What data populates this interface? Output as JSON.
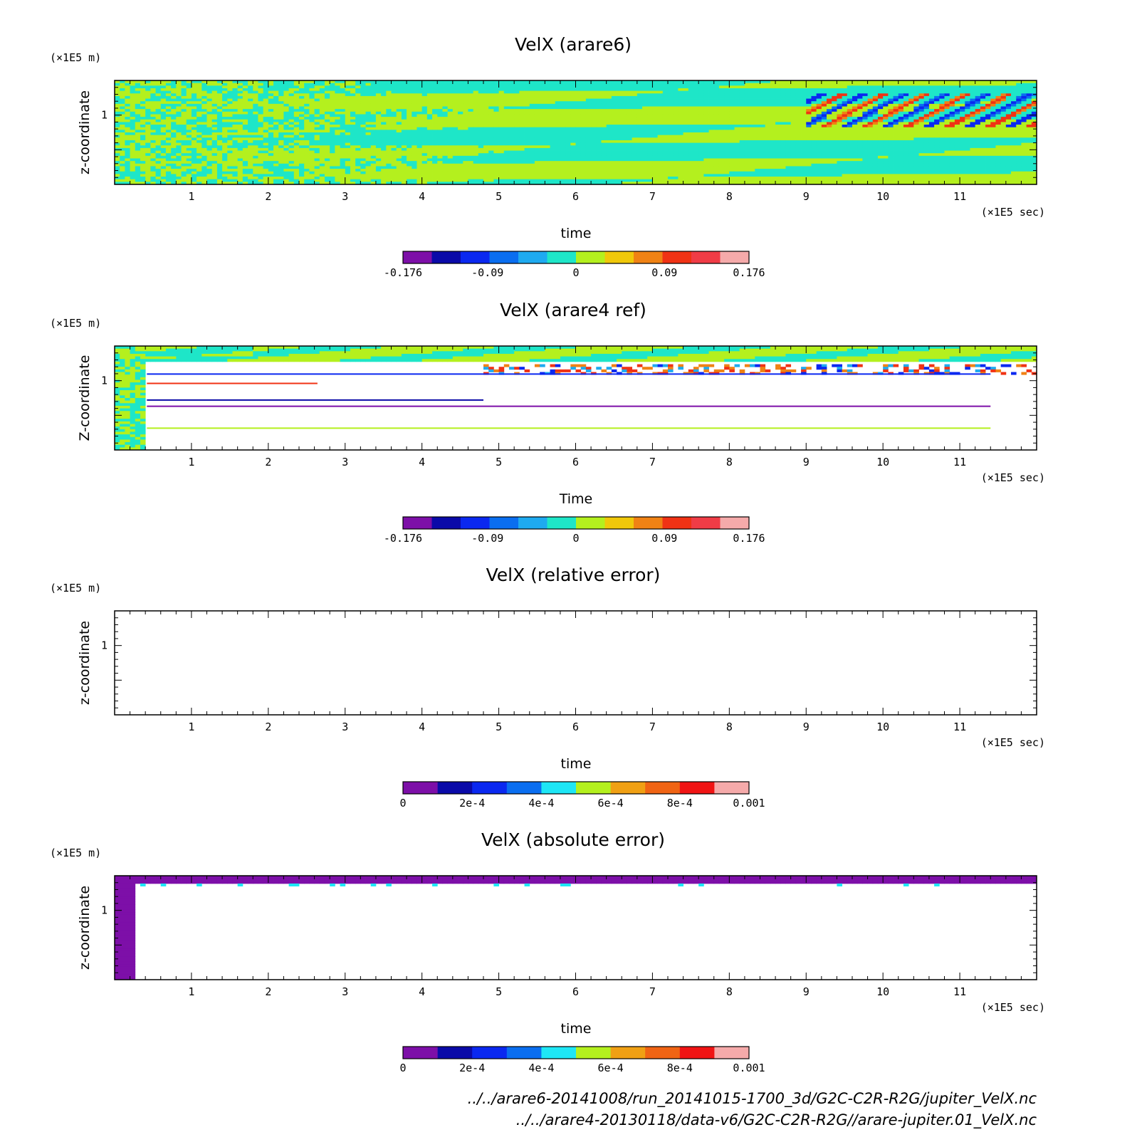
{
  "chart_data": [
    {
      "type": "heatmap",
      "title": "VelX (arare6)",
      "xlabel": "time",
      "ylabel": "z-coordinate",
      "x_unit": "(×1E5 sec)",
      "y_unit": "(×1E5 m)",
      "x_ticks": [
        "1",
        "2",
        "3",
        "4",
        "5",
        "6",
        "7",
        "8",
        "9",
        "10",
        "11"
      ],
      "y_ticks": [
        "1"
      ],
      "xlim": [
        0,
        12
      ],
      "ylim": [
        0,
        1.5
      ],
      "colorbar": {
        "colors": [
          "#7d0fa8",
          "#0a0aa8",
          "#0a28f0",
          "#0a6ef0",
          "#1eaaf0",
          "#1ee6c8",
          "#b4f01e",
          "#f0c80a",
          "#f08214",
          "#f03214",
          "#f03c46",
          "#f5aaaa"
        ],
        "tick_labels": [
          "-0.176",
          "-0.09",
          "0",
          "0.09",
          "0.176"
        ],
        "tick_values": [
          -0.176,
          -0.09,
          0,
          0.09,
          0.176
        ],
        "range": [
          -0.176,
          0.176
        ]
      },
      "pattern": "arare6"
    },
    {
      "type": "heatmap",
      "title": "VelX (arare4 ref)",
      "xlabel": "Time",
      "ylabel": "Z-coordinate",
      "x_unit": "(×1E5 sec)",
      "y_unit": "(×1E5 m)",
      "x_ticks": [
        "1",
        "2",
        "3",
        "4",
        "5",
        "6",
        "7",
        "8",
        "9",
        "10",
        "11"
      ],
      "y_ticks": [
        "1"
      ],
      "xlim": [
        0,
        12
      ],
      "ylim": [
        0,
        1.5
      ],
      "colorbar": {
        "colors": [
          "#7d0fa8",
          "#0a0aa8",
          "#0a28f0",
          "#0a6ef0",
          "#1eaaf0",
          "#1ee6c8",
          "#b4f01e",
          "#f0c80a",
          "#f08214",
          "#f03214",
          "#f03c46",
          "#f5aaaa"
        ],
        "tick_labels": [
          "-0.176",
          "-0.09",
          "0",
          "0.09",
          "0.176"
        ],
        "tick_values": [
          -0.176,
          -0.09,
          0,
          0.09,
          0.176
        ],
        "range": [
          -0.176,
          0.176
        ]
      },
      "pattern": "arare4"
    },
    {
      "type": "heatmap",
      "title": "VelX (relative error)",
      "xlabel": "time",
      "ylabel": "z-coordinate",
      "x_unit": "(×1E5 sec)",
      "y_unit": "(×1E5 m)",
      "x_ticks": [
        "1",
        "2",
        "3",
        "4",
        "5",
        "6",
        "7",
        "8",
        "9",
        "10",
        "11"
      ],
      "y_ticks": [
        "1"
      ],
      "xlim": [
        0,
        12
      ],
      "ylim": [
        0,
        1.5
      ],
      "colorbar": {
        "colors": [
          "#7d0fa8",
          "#0a0aa8",
          "#0a28f0",
          "#0a6ef0",
          "#1ee6f5",
          "#b4f01e",
          "#f0a014",
          "#f06414",
          "#f01414",
          "#f5aaaa"
        ],
        "tick_labels": [
          "0",
          "2e-4",
          "4e-4",
          "6e-4",
          "8e-4",
          "0.001"
        ],
        "tick_values": [
          0,
          0.0002,
          0.0004,
          0.0006,
          0.0008,
          0.001
        ],
        "range": [
          0,
          0.001
        ]
      },
      "pattern": "empty"
    },
    {
      "type": "heatmap",
      "title": "VelX (absolute error)",
      "xlabel": "time",
      "ylabel": "z-coordinate",
      "x_unit": "(×1E5 sec)",
      "y_unit": "(×1E5 m)",
      "x_ticks": [
        "1",
        "2",
        "3",
        "4",
        "5",
        "6",
        "7",
        "8",
        "9",
        "10",
        "11"
      ],
      "y_ticks": [
        "1"
      ],
      "xlim": [
        0,
        12
      ],
      "ylim": [
        0,
        1.5
      ],
      "colorbar": {
        "colors": [
          "#7d0fa8",
          "#0a0aa8",
          "#0a28f0",
          "#0a6ef0",
          "#1ee6f5",
          "#b4f01e",
          "#f0a014",
          "#f06414",
          "#f01414",
          "#f5aaaa"
        ],
        "tick_labels": [
          "0",
          "2e-4",
          "4e-4",
          "6e-4",
          "8e-4",
          "0.001"
        ],
        "tick_values": [
          0,
          0.0002,
          0.0004,
          0.0006,
          0.0008,
          0.001
        ],
        "range": [
          0,
          0.001
        ]
      },
      "pattern": "abserr"
    }
  ],
  "footer": {
    "path_arare6": "../../arare6-20141008/run_20141015-1700_3d/G2C-C2R-R2G/jupiter_VelX.nc",
    "path_arare4": "../../arare4-20130118/data-v6/G2C-C2R-R2G//arare-jupiter.01_VelX.nc"
  }
}
